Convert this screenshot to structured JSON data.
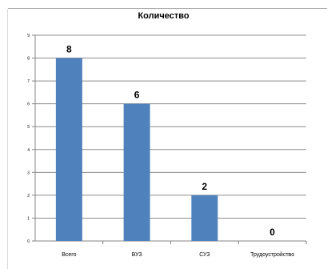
{
  "chart_data": {
    "type": "bar",
    "title": "Количество",
    "categories": [
      "Всего",
      "ВУЗ",
      "СУЗ",
      "Трудоустройство"
    ],
    "values": [
      8,
      6,
      2,
      0
    ],
    "data_labels": [
      "8",
      "6",
      "2",
      "0"
    ],
    "ylim": [
      0,
      9
    ],
    "y_ticks": [
      "0",
      "1",
      "2",
      "3",
      "4",
      "5",
      "6",
      "7",
      "8",
      "9"
    ],
    "grid": true,
    "legend": "none",
    "bar_color": "#4f81bd"
  }
}
